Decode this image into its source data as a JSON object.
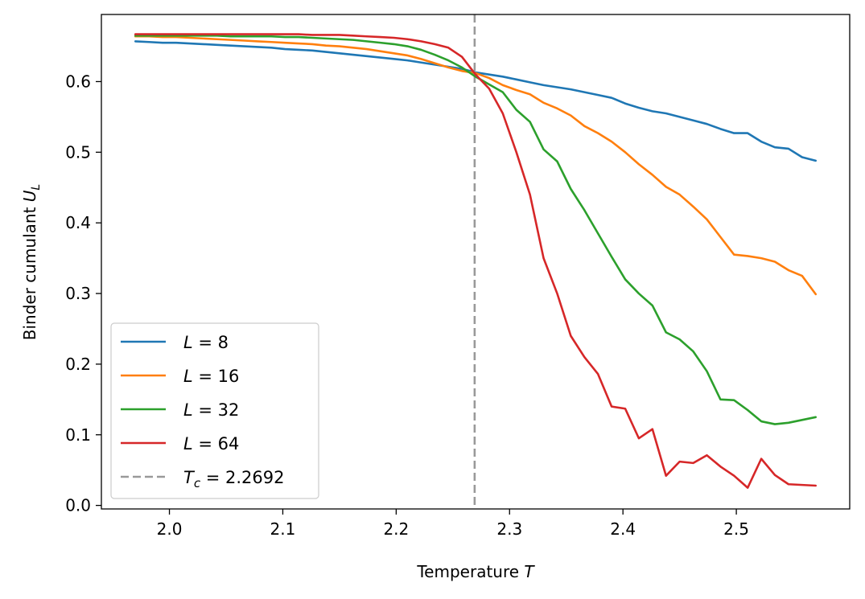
{
  "chart_data": {
    "type": "line",
    "title": "",
    "xlabel": "Temperature T",
    "ylabel": "Binder cumulant U_L",
    "xlabel_main": "Temperature ",
    "xlabel_var": "T",
    "ylabel_main": "Binder cumulant ",
    "ylabel_var": "U",
    "ylabel_sub": "L",
    "xlim": [
      1.94,
      2.6
    ],
    "ylim": [
      -0.005,
      0.695
    ],
    "xticks": [
      2.0,
      2.1,
      2.2,
      2.3,
      2.4,
      2.5
    ],
    "xtick_labels": [
      "2.0",
      "2.1",
      "2.2",
      "2.3",
      "2.4",
      "2.5"
    ],
    "yticks": [
      0.0,
      0.1,
      0.2,
      0.3,
      0.4,
      0.5,
      0.6
    ],
    "ytick_labels": [
      "0.0",
      "0.1",
      "0.2",
      "0.3",
      "0.4",
      "0.5",
      "0.6"
    ],
    "grid": false,
    "legend_position": "lower-left",
    "x": [
      1.97,
      1.982,
      1.994,
      2.006,
      2.018,
      2.03,
      2.042,
      2.054,
      2.066,
      2.078,
      2.09,
      2.102,
      2.114,
      2.126,
      2.138,
      2.15,
      2.162,
      2.174,
      2.186,
      2.198,
      2.21,
      2.222,
      2.234,
      2.246,
      2.258,
      2.27,
      2.282,
      2.294,
      2.306,
      2.318,
      2.33,
      2.342,
      2.354,
      2.366,
      2.378,
      2.39,
      2.402,
      2.414,
      2.426,
      2.438,
      2.45,
      2.462,
      2.474,
      2.486,
      2.498,
      2.51,
      2.522,
      2.534,
      2.546,
      2.558,
      2.57
    ],
    "series": [
      {
        "name": "L = 8",
        "label_var": "L",
        "label_value": "8",
        "color": "#1f77b4",
        "values": [
          0.657,
          0.656,
          0.655,
          0.655,
          0.654,
          0.653,
          0.652,
          0.651,
          0.65,
          0.649,
          0.648,
          0.646,
          0.645,
          0.644,
          0.642,
          0.64,
          0.638,
          0.636,
          0.634,
          0.632,
          0.63,
          0.627,
          0.624,
          0.621,
          0.618,
          0.613,
          0.61,
          0.607,
          0.603,
          0.599,
          0.595,
          0.592,
          0.589,
          0.585,
          0.581,
          0.577,
          0.569,
          0.563,
          0.558,
          0.555,
          0.55,
          0.545,
          0.54,
          0.533,
          0.527,
          0.527,
          0.515,
          0.507,
          0.505,
          0.493,
          0.488
        ]
      },
      {
        "name": "L = 16",
        "label_var": "L",
        "label_value": "16",
        "color": "#ff7f0e",
        "values": [
          0.664,
          0.664,
          0.663,
          0.663,
          0.662,
          0.661,
          0.66,
          0.659,
          0.658,
          0.657,
          0.656,
          0.655,
          0.654,
          0.653,
          0.651,
          0.65,
          0.648,
          0.646,
          0.643,
          0.64,
          0.637,
          0.632,
          0.626,
          0.62,
          0.615,
          0.612,
          0.605,
          0.595,
          0.588,
          0.582,
          0.57,
          0.562,
          0.552,
          0.537,
          0.527,
          0.515,
          0.5,
          0.483,
          0.468,
          0.451,
          0.44,
          0.423,
          0.405,
          0.38,
          0.355,
          0.353,
          0.35,
          0.345,
          0.333,
          0.325,
          0.299
        ]
      },
      {
        "name": "L = 32",
        "label_var": "L",
        "label_value": "32",
        "color": "#2ca02c",
        "values": [
          0.665,
          0.665,
          0.665,
          0.665,
          0.665,
          0.665,
          0.665,
          0.664,
          0.664,
          0.664,
          0.664,
          0.663,
          0.663,
          0.662,
          0.661,
          0.66,
          0.659,
          0.657,
          0.655,
          0.653,
          0.65,
          0.645,
          0.638,
          0.63,
          0.62,
          0.607,
          0.596,
          0.585,
          0.56,
          0.543,
          0.504,
          0.487,
          0.448,
          0.418,
          0.385,
          0.352,
          0.32,
          0.3,
          0.283,
          0.245,
          0.235,
          0.218,
          0.19,
          0.15,
          0.149,
          0.135,
          0.119,
          0.115,
          0.117,
          0.121,
          0.125
        ]
      },
      {
        "name": "L = 64",
        "label_var": "L",
        "label_value": "64",
        "color": "#d62728",
        "values": [
          0.667,
          0.667,
          0.667,
          0.667,
          0.667,
          0.667,
          0.667,
          0.667,
          0.667,
          0.667,
          0.667,
          0.667,
          0.667,
          0.666,
          0.666,
          0.666,
          0.665,
          0.664,
          0.663,
          0.662,
          0.66,
          0.657,
          0.653,
          0.648,
          0.635,
          0.61,
          0.59,
          0.555,
          0.5,
          0.44,
          0.35,
          0.3,
          0.24,
          0.21,
          0.186,
          0.14,
          0.137,
          0.095,
          0.108,
          0.042,
          0.062,
          0.06,
          0.071,
          0.055,
          0.042,
          0.025,
          0.066,
          0.043,
          0.03,
          0.029,
          0.028
        ]
      }
    ],
    "reference_line": {
      "x": 2.2692,
      "name": "T_c = 2.2692",
      "label_var": "T",
      "label_sub": "c",
      "label_value": "2.2692",
      "color": "#999999",
      "style": "dashed"
    }
  }
}
